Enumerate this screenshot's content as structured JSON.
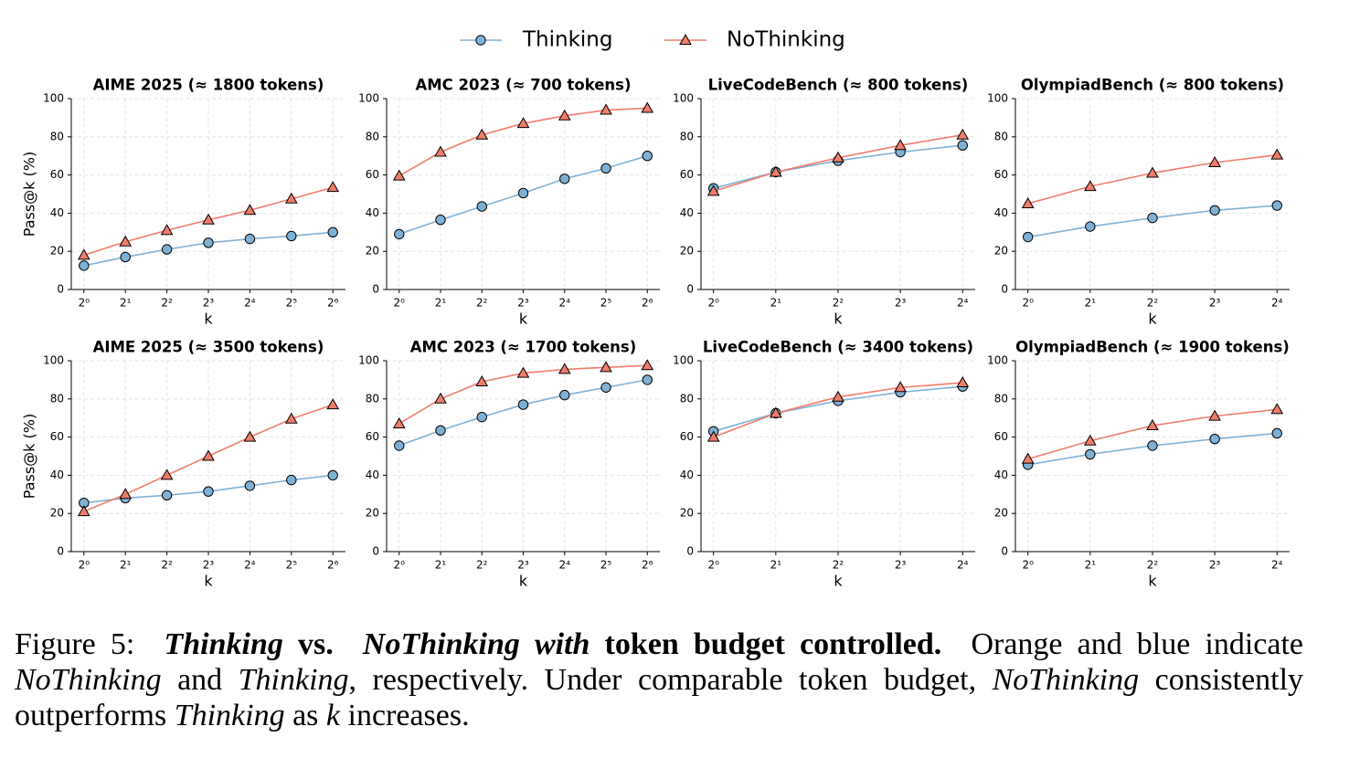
{
  "chart_data": [
    {
      "type": "line",
      "title": "AIME 2025 (≈ 1800 tokens)",
      "xlabel": "k",
      "ylabel": "Pass@k (%)",
      "xscale": "log2",
      "grid": true,
      "x": [
        1,
        2,
        4,
        8,
        16,
        32,
        64
      ],
      "xlim": [
        0.81,
        79
      ],
      "ylim": [
        0,
        100
      ],
      "yticks": [
        0,
        20,
        40,
        60,
        80,
        100
      ],
      "xticks": [
        {
          "value": 1,
          "label": "2⁰"
        },
        {
          "value": 2,
          "label": "2¹"
        },
        {
          "value": 4,
          "label": "2²"
        },
        {
          "value": 8,
          "label": "2³"
        },
        {
          "value": 16,
          "label": "2⁴"
        },
        {
          "value": 32,
          "label": "2⁵"
        },
        {
          "value": 64,
          "label": "2⁶"
        }
      ],
      "series": [
        {
          "name": "Thinking",
          "color": "#7fb1d6",
          "marker": "circle",
          "values": [
            12.5,
            17,
            21,
            24.5,
            26.5,
            28,
            30
          ]
        },
        {
          "name": "NoThinking",
          "color": "#f07d6c",
          "marker": "triangle",
          "values": [
            18,
            25,
            31,
            36.5,
            41.5,
            47.5,
            53.5
          ]
        }
      ]
    },
    {
      "type": "line",
      "title": "AMC 2023 (≈ 700 tokens)",
      "xlabel": "k",
      "xscale": "log2",
      "grid": true,
      "x": [
        1,
        2,
        4,
        8,
        16,
        32,
        64
      ],
      "xlim": [
        0.81,
        79
      ],
      "ylim": [
        0,
        100
      ],
      "yticks": [
        0,
        20,
        40,
        60,
        80,
        100
      ],
      "xticks": [
        {
          "value": 1,
          "label": "2⁰"
        },
        {
          "value": 2,
          "label": "2¹"
        },
        {
          "value": 4,
          "label": "2²"
        },
        {
          "value": 8,
          "label": "2³"
        },
        {
          "value": 16,
          "label": "2⁴"
        },
        {
          "value": 32,
          "label": "2⁵"
        },
        {
          "value": 64,
          "label": "2⁶"
        }
      ],
      "series": [
        {
          "name": "Thinking",
          "color": "#7fb1d6",
          "marker": "circle",
          "values": [
            29,
            36.5,
            43.5,
            50.5,
            58,
            63.5,
            70
          ]
        },
        {
          "name": "NoThinking",
          "color": "#f07d6c",
          "marker": "triangle",
          "values": [
            59.5,
            72,
            81,
            87,
            91,
            94,
            95
          ]
        }
      ]
    },
    {
      "type": "line",
      "title": "LiveCodeBench (≈ 800 tokens)",
      "xlabel": "k",
      "xscale": "log2",
      "grid": true,
      "x": [
        1,
        2,
        4,
        8,
        16
      ],
      "xlim": [
        0.87,
        18.4
      ],
      "ylim": [
        0,
        100
      ],
      "yticks": [
        0,
        20,
        40,
        60,
        80,
        100
      ],
      "xticks": [
        {
          "value": 1,
          "label": "2⁰"
        },
        {
          "value": 2,
          "label": "2¹"
        },
        {
          "value": 4,
          "label": "2²"
        },
        {
          "value": 8,
          "label": "2³"
        },
        {
          "value": 16,
          "label": "2⁴"
        }
      ],
      "series": [
        {
          "name": "Thinking",
          "color": "#7fb1d6",
          "marker": "circle",
          "values": [
            53,
            61.5,
            67.5,
            72,
            75.5
          ]
        },
        {
          "name": "NoThinking",
          "color": "#f07d6c",
          "marker": "triangle",
          "values": [
            51.5,
            61.5,
            69,
            75.5,
            81
          ]
        }
      ]
    },
    {
      "type": "line",
      "title": "OlympiadBench (≈ 800 tokens)",
      "xlabel": "k",
      "xscale": "log2",
      "grid": true,
      "x": [
        1,
        2,
        4,
        8,
        16
      ],
      "xlim": [
        0.87,
        18.4
      ],
      "ylim": [
        0,
        100
      ],
      "yticks": [
        0,
        20,
        40,
        60,
        80,
        100
      ],
      "xticks": [
        {
          "value": 1,
          "label": "2⁰"
        },
        {
          "value": 2,
          "label": "2¹"
        },
        {
          "value": 4,
          "label": "2²"
        },
        {
          "value": 8,
          "label": "2³"
        },
        {
          "value": 16,
          "label": "2⁴"
        }
      ],
      "series": [
        {
          "name": "Thinking",
          "color": "#7fb1d6",
          "marker": "circle",
          "values": [
            27.5,
            33,
            37.5,
            41.5,
            44
          ]
        },
        {
          "name": "NoThinking",
          "color": "#f07d6c",
          "marker": "triangle",
          "values": [
            45,
            54,
            61,
            66.5,
            70.5
          ]
        }
      ]
    },
    {
      "type": "line",
      "title": "AIME 2025 (≈ 3500 tokens)",
      "xlabel": "k",
      "ylabel": "Pass@k (%)",
      "xscale": "log2",
      "grid": true,
      "x": [
        1,
        2,
        4,
        8,
        16,
        32,
        64
      ],
      "xlim": [
        0.81,
        79
      ],
      "ylim": [
        0,
        100
      ],
      "yticks": [
        0,
        20,
        40,
        60,
        80,
        100
      ],
      "xticks": [
        {
          "value": 1,
          "label": "2⁰"
        },
        {
          "value": 2,
          "label": "2¹"
        },
        {
          "value": 4,
          "label": "2²"
        },
        {
          "value": 8,
          "label": "2³"
        },
        {
          "value": 16,
          "label": "2⁴"
        },
        {
          "value": 32,
          "label": "2⁵"
        },
        {
          "value": 64,
          "label": "2⁶"
        }
      ],
      "series": [
        {
          "name": "Thinking",
          "color": "#7fb1d6",
          "marker": "circle",
          "values": [
            25.5,
            28,
            29.5,
            31.5,
            34.5,
            37.5,
            40
          ]
        },
        {
          "name": "NoThinking",
          "color": "#f07d6c",
          "marker": "triangle",
          "values": [
            21,
            30,
            40,
            50,
            60,
            69.5,
            77
          ]
        }
      ]
    },
    {
      "type": "line",
      "title": "AMC 2023 (≈ 1700 tokens)",
      "xlabel": "k",
      "xscale": "log2",
      "grid": true,
      "x": [
        1,
        2,
        4,
        8,
        16,
        32,
        64
      ],
      "xlim": [
        0.81,
        79
      ],
      "ylim": [
        0,
        100
      ],
      "yticks": [
        0,
        20,
        40,
        60,
        80,
        100
      ],
      "xticks": [
        {
          "value": 1,
          "label": "2⁰"
        },
        {
          "value": 2,
          "label": "2¹"
        },
        {
          "value": 4,
          "label": "2²"
        },
        {
          "value": 8,
          "label": "2³"
        },
        {
          "value": 16,
          "label": "2⁴"
        },
        {
          "value": 32,
          "label": "2⁵"
        },
        {
          "value": 64,
          "label": "2⁶"
        }
      ],
      "series": [
        {
          "name": "Thinking",
          "color": "#7fb1d6",
          "marker": "circle",
          "values": [
            55.5,
            63.5,
            70.5,
            77,
            82,
            86,
            90
          ]
        },
        {
          "name": "NoThinking",
          "color": "#f07d6c",
          "marker": "triangle",
          "values": [
            67,
            80,
            89,
            93.5,
            95.5,
            96.5,
            97.5
          ]
        }
      ]
    },
    {
      "type": "line",
      "title": "LiveCodeBench (≈ 3400 tokens)",
      "xlabel": "k",
      "xscale": "log2",
      "grid": true,
      "x": [
        1,
        2,
        4,
        8,
        16
      ],
      "xlim": [
        0.87,
        18.4
      ],
      "ylim": [
        0,
        100
      ],
      "yticks": [
        0,
        20,
        40,
        60,
        80,
        100
      ],
      "xticks": [
        {
          "value": 1,
          "label": "2⁰"
        },
        {
          "value": 2,
          "label": "2¹"
        },
        {
          "value": 4,
          "label": "2²"
        },
        {
          "value": 8,
          "label": "2³"
        },
        {
          "value": 16,
          "label": "2⁴"
        }
      ],
      "series": [
        {
          "name": "Thinking",
          "color": "#7fb1d6",
          "marker": "circle",
          "values": [
            63,
            72.5,
            79,
            83.5,
            86.5
          ]
        },
        {
          "name": "NoThinking",
          "color": "#f07d6c",
          "marker": "triangle",
          "values": [
            60,
            72.5,
            81,
            86,
            88.5
          ]
        }
      ]
    },
    {
      "type": "line",
      "title": "OlympiadBench (≈ 1900 tokens)",
      "xlabel": "k",
      "xscale": "log2",
      "grid": true,
      "x": [
        1,
        2,
        4,
        8,
        16
      ],
      "xlim": [
        0.87,
        18.4
      ],
      "ylim": [
        0,
        100
      ],
      "yticks": [
        0,
        20,
        40,
        60,
        80,
        100
      ],
      "xticks": [
        {
          "value": 1,
          "label": "2⁰"
        },
        {
          "value": 2,
          "label": "2¹"
        },
        {
          "value": 4,
          "label": "2²"
        },
        {
          "value": 8,
          "label": "2³"
        },
        {
          "value": 16,
          "label": "2⁴"
        }
      ],
      "series": [
        {
          "name": "Thinking",
          "color": "#7fb1d6",
          "marker": "circle",
          "values": [
            45.5,
            51,
            55.5,
            59,
            62
          ]
        },
        {
          "name": "NoThinking",
          "color": "#f07d6c",
          "marker": "triangle",
          "values": [
            48.5,
            58,
            66,
            71,
            74.5
          ]
        }
      ]
    }
  ],
  "caption": {
    "label": "Figure 5:",
    "runs": [
      "Thinking",
      "vs.",
      "NoThinking with",
      "token budget controlled.",
      "Orange and blue indicate",
      "NoThinking",
      "and",
      "Thinking",
      ", respectively. Under comparable token budget,",
      "NoThinking",
      "consistently outperforms",
      "Thinking",
      "as",
      "k",
      "increases."
    ]
  }
}
